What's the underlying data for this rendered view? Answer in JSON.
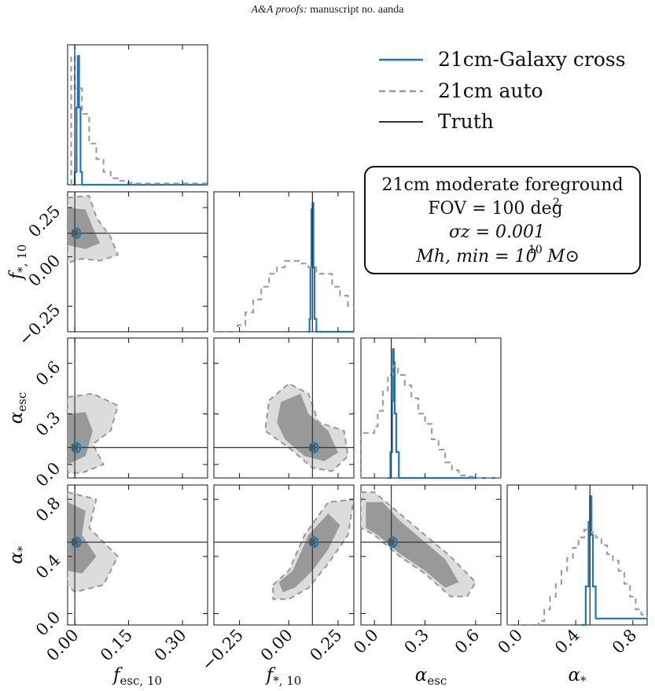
{
  "header": {
    "journal": "A&A proofs:",
    "rest": "manuscript no. aanda"
  },
  "legend": [
    {
      "label": "21cm-Galaxy cross",
      "color": "#1f77b4",
      "style": "solid"
    },
    {
      "label": "21cm auto",
      "color": "#999999",
      "style": "dashed"
    },
    {
      "label": "Truth",
      "color": "#333333",
      "style": "solid"
    }
  ],
  "info_box": {
    "line1": "21cm moderate foreground",
    "line2": "FOV = 100 deg",
    "line2_sup": "2",
    "line3": "σz = 0.001",
    "line4": "Mh, min = 10",
    "line4_sup": "10",
    "line4_tail": "M⊙"
  },
  "chart_data": {
    "type": "corner",
    "parameters": [
      {
        "key": "fesc",
        "label": "f_esc,10",
        "label_main": "f",
        "label_sub": "esc, 10",
        "range": [
          -0.02,
          0.37
        ],
        "ticks": [
          "0.00",
          "0.15",
          "0.30"
        ],
        "tick_values": [
          0.0,
          0.15,
          0.3
        ],
        "truth": 0.0
      },
      {
        "key": "fstar",
        "label": "f_*,10",
        "label_main": "f",
        "label_sub": "*, 10",
        "range": [
          -0.38,
          0.33
        ],
        "ticks": [
          "−0.25",
          "0.00",
          "0.25"
        ],
        "tick_values": [
          -0.25,
          0.0,
          0.25
        ],
        "truth": 0.12
      },
      {
        "key": "aesc",
        "label": "α_esc",
        "label_main": "α",
        "label_sub": "esc",
        "range": [
          -0.08,
          0.75
        ],
        "ticks": [
          "0.0",
          "0.3",
          "0.6"
        ],
        "tick_values": [
          0.0,
          0.3,
          0.6
        ],
        "truth": 0.1
      },
      {
        "key": "astar",
        "label": "α_*",
        "label_main": "α",
        "label_sub": "*",
        "range": [
          -0.08,
          0.9
        ],
        "ticks": [
          "0.0",
          "0.4",
          "0.8"
        ],
        "tick_values": [
          0.0,
          0.4,
          0.8
        ],
        "truth": 0.5
      }
    ],
    "series": [
      {
        "name": "21cm-Galaxy cross",
        "marginals": {
          "fesc": {
            "x": [
              -0.005,
              0.0,
              0.005,
              0.008,
              0.012,
              0.016,
              0.02
            ],
            "y": [
              0,
              0.1,
              0.6,
              1.0,
              0.6,
              0.1,
              0
            ]
          },
          "fstar": {
            "x": [
              0.095,
              0.105,
              0.11,
              0.115,
              0.12,
              0.125,
              0.13,
              0.14
            ],
            "y": [
              0,
              0.1,
              0.5,
              0.95,
              1.0,
              0.5,
              0.1,
              0
            ]
          },
          "aesc": {
            "x": [
              0.08,
              0.095,
              0.105,
              0.11,
              0.115,
              0.12,
              0.13,
              0.145
            ],
            "y": [
              0,
              0.2,
              0.6,
              1.0,
              0.9,
              0.5,
              0.2,
              0
            ]
          },
          "astar": {
            "x": [
              0.44,
              0.47,
              0.49,
              0.5,
              0.51,
              0.52,
              0.54
            ],
            "y": [
              0,
              0.3,
              0.8,
              1.0,
              0.7,
              0.3,
              0.05
            ]
          }
        }
      },
      {
        "name": "21cm auto",
        "marginals": {
          "fesc": {
            "x": [
              -0.01,
              0.0,
              0.02,
              0.04,
              0.06,
              0.08,
              0.1,
              0.12,
              0.14,
              0.17,
              0.2,
              0.25,
              0.3,
              0.35,
              0.37
            ],
            "y": [
              1.0,
              0.75,
              0.55,
              0.32,
              0.2,
              0.1,
              0.05,
              0.03,
              0.015,
              0.01,
              0.01,
              0.01,
              0.01,
              0.01,
              0.01
            ]
          },
          "fstar": {
            "x": [
              -0.38,
              -0.3,
              -0.26,
              -0.22,
              -0.18,
              -0.14,
              -0.1,
              -0.06,
              -0.02,
              0.02,
              0.06,
              0.1,
              0.14,
              0.18,
              0.22,
              0.26,
              0.3,
              0.33
            ],
            "y": [
              0,
              0.0,
              0.05,
              0.15,
              0.25,
              0.35,
              0.45,
              0.5,
              0.55,
              0.55,
              0.53,
              0.5,
              0.45,
              0.45,
              0.35,
              0.28,
              0.2,
              0.15
            ]
          },
          "aesc": {
            "x": [
              -0.08,
              0.0,
              0.02,
              0.05,
              0.08,
              0.11,
              0.14,
              0.18,
              0.22,
              0.26,
              0.3,
              0.34,
              0.38,
              0.42,
              0.46,
              0.5,
              0.55,
              0.6,
              0.75
            ],
            "y": [
              0.35,
              0.4,
              0.52,
              0.68,
              0.8,
              0.87,
              0.8,
              0.72,
              0.62,
              0.5,
              0.42,
              0.3,
              0.22,
              0.12,
              0.06,
              0.02,
              0.01,
              0.0,
              0.0
            ]
          },
          "astar": {
            "x": [
              -0.08,
              0.1,
              0.14,
              0.18,
              0.22,
              0.26,
              0.3,
              0.34,
              0.38,
              0.42,
              0.46,
              0.5,
              0.54,
              0.58,
              0.62,
              0.66,
              0.7,
              0.74,
              0.78,
              0.82,
              0.86,
              0.9
            ],
            "y": [
              0,
              0,
              0.03,
              0.12,
              0.22,
              0.32,
              0.42,
              0.52,
              0.6,
              0.68,
              0.74,
              0.72,
              0.68,
              0.62,
              0.55,
              0.5,
              0.42,
              0.32,
              0.22,
              0.12,
              0.08,
              0.05
            ]
          }
        }
      }
    ],
    "max_density": {
      "fesc": 1.0,
      "fstar": 1.0,
      "aesc": 1.0,
      "astar": 1.0
    },
    "xlabel": "",
    "ylabel": "",
    "grid": false,
    "legend_placement": "top-right"
  }
}
